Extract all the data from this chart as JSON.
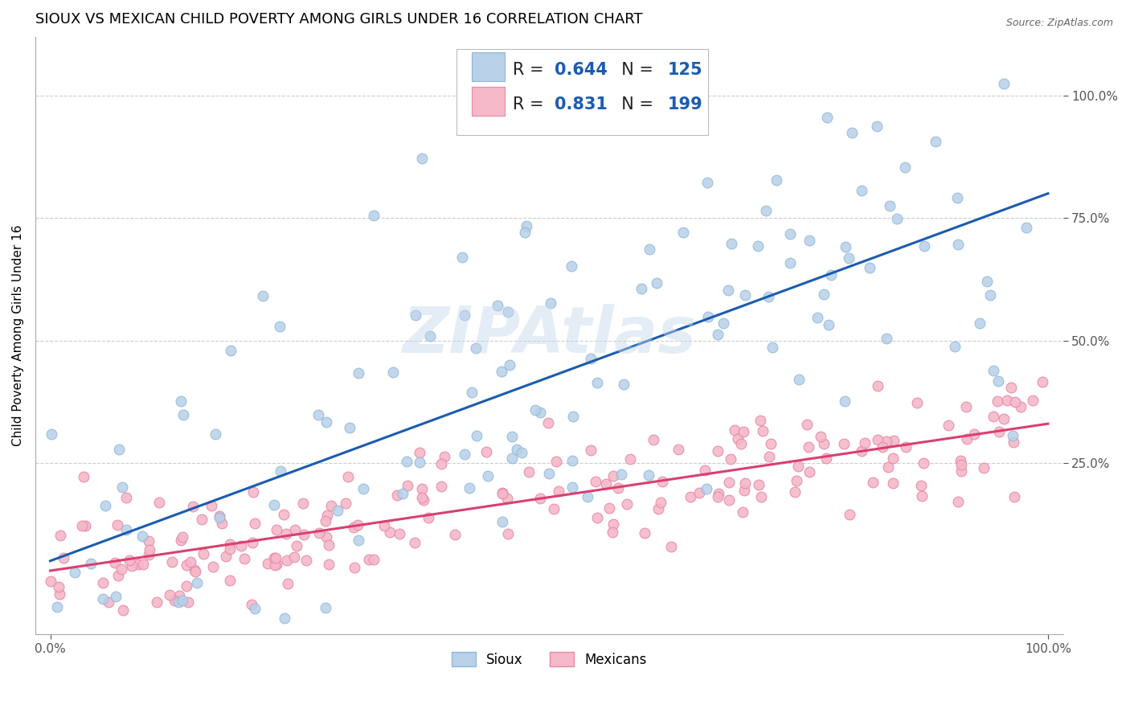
{
  "title": "SIOUX VS MEXICAN CHILD POVERTY AMONG GIRLS UNDER 16 CORRELATION CHART",
  "source": "Source: ZipAtlas.com",
  "ylabel": "Child Poverty Among Girls Under 16",
  "x_tick_labels": [
    "0.0%",
    "100.0%"
  ],
  "y_tick_labels": [
    "25.0%",
    "50.0%",
    "75.0%",
    "100.0%"
  ],
  "y_tick_positions": [
    0.25,
    0.5,
    0.75,
    1.0
  ],
  "sioux_color": "#b8d0e8",
  "sioux_edge_color": "#90b8d8",
  "mexican_color": "#f5b8c8",
  "mexican_edge_color": "#e888a8",
  "sioux_line_color": "#1a5cb0",
  "mexican_line_color": "#d84070",
  "sioux_R": 0.644,
  "sioux_N": 125,
  "mexican_R": 0.831,
  "mexican_N": 199,
  "watermark": "ZIPAtlas",
  "legend_labels": [
    "Sioux",
    "Mexicans"
  ],
  "background_color": "#ffffff",
  "grid_color": "#cccccc",
  "title_fontsize": 13,
  "axis_label_fontsize": 11,
  "tick_label_fontsize": 11,
  "legend_fontsize": 15,
  "sioux_intercept": 0.05,
  "sioux_slope": 0.75,
  "sioux_noise_std": 0.2,
  "mexican_intercept": 0.03,
  "mexican_slope": 0.3,
  "mexican_noise_std": 0.065
}
